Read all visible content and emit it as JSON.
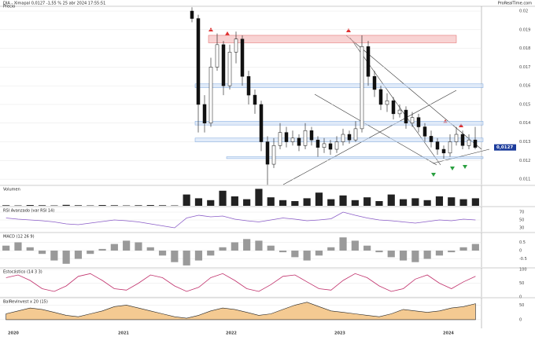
{
  "header": {
    "title": "DIA - Ximapal 0,0127 -1,55 % 25 abr 2024 17:55:51",
    "brand": "ProRealTime.com",
    "last_price_label": "0,0127"
  },
  "x_axis": {
    "labels": [
      "2020",
      "2021",
      "2022",
      "2023",
      "2024"
    ]
  },
  "chart_data": [
    {
      "type": "candlestick",
      "title": "Precio",
      "color_up": "#ffffff",
      "color_down": "#111111",
      "open": [
        0.02,
        0.0196,
        0.015,
        0.014,
        0.017,
        0.0182,
        0.016,
        0.0178,
        0.0185,
        0.0165,
        0.0155,
        0.015,
        0.013,
        0.0118,
        0.0128,
        0.0135,
        0.013,
        0.0132,
        0.0128,
        0.0136,
        0.0131,
        0.0127,
        0.0129,
        0.0126,
        0.013,
        0.0134,
        0.0131,
        0.0137,
        0.0181,
        0.0165,
        0.0158,
        0.015,
        0.0152,
        0.0145,
        0.0147,
        0.014,
        0.0143,
        0.0138,
        0.0133,
        0.013,
        0.0126,
        0.0124,
        0.013,
        0.0134,
        0.0128,
        0.0131
      ],
      "high": [
        0.0202,
        0.0198,
        0.0155,
        0.0175,
        0.0188,
        0.0184,
        0.0182,
        0.0189,
        0.0187,
        0.0168,
        0.0158,
        0.0152,
        0.0133,
        0.0132,
        0.014,
        0.0138,
        0.0136,
        0.0134,
        0.014,
        0.0138,
        0.0133,
        0.0132,
        0.0131,
        0.0133,
        0.0137,
        0.0136,
        0.0141,
        0.0187,
        0.0184,
        0.0168,
        0.016,
        0.0156,
        0.0154,
        0.015,
        0.0149,
        0.0146,
        0.0145,
        0.014,
        0.0136,
        0.0132,
        0.0128,
        0.0134,
        0.0138,
        0.0136,
        0.0134,
        0.0138
      ],
      "low": [
        0.0194,
        0.0135,
        0.0135,
        0.0138,
        0.0168,
        0.0155,
        0.0158,
        0.0172,
        0.016,
        0.015,
        0.0145,
        0.0125,
        0.0107,
        0.0116,
        0.0126,
        0.0127,
        0.0128,
        0.0125,
        0.0126,
        0.0128,
        0.0122,
        0.0124,
        0.0123,
        0.0124,
        0.0128,
        0.0129,
        0.013,
        0.0135,
        0.016,
        0.0154,
        0.0147,
        0.0146,
        0.0142,
        0.0143,
        0.0137,
        0.0138,
        0.0135,
        0.013,
        0.0127,
        0.0123,
        0.0121,
        0.0122,
        0.0128,
        0.0126,
        0.0126,
        0.0126
      ],
      "close": [
        0.0196,
        0.015,
        0.014,
        0.017,
        0.0182,
        0.016,
        0.0178,
        0.0185,
        0.0165,
        0.0155,
        0.015,
        0.013,
        0.0118,
        0.0128,
        0.0135,
        0.013,
        0.0132,
        0.0128,
        0.0136,
        0.0131,
        0.0127,
        0.0129,
        0.0126,
        0.013,
        0.0134,
        0.0131,
        0.0137,
        0.0181,
        0.0165,
        0.0158,
        0.015,
        0.0152,
        0.0145,
        0.0147,
        0.014,
        0.0143,
        0.0138,
        0.0133,
        0.013,
        0.0126,
        0.0124,
        0.013,
        0.0134,
        0.0128,
        0.0131,
        0.0127
      ],
      "zones": [
        {
          "low": 0.0183,
          "high": 0.0187,
          "color": "#f4b6b6"
        },
        {
          "low": 0.0159,
          "high": 0.0161,
          "color": "#cfe0f7"
        },
        {
          "low": 0.0139,
          "high": 0.0141,
          "color": "#cfe0f7"
        },
        {
          "low": 0.013,
          "high": 0.0132,
          "color": "#cfe0f7"
        },
        {
          "low": 0.0121,
          "high": 0.0122,
          "color": "#cfe0f7"
        }
      ],
      "ylim": [
        0.01071,
        0.02017
      ],
      "yticks": [
        0.011,
        0.012,
        0.013,
        0.014,
        0.015,
        0.016,
        0.017,
        0.018,
        0.019,
        0.02
      ]
    },
    {
      "type": "bar",
      "title": "Volumen",
      "color": "#222222",
      "values": [
        3,
        2,
        4,
        3,
        2,
        5,
        3,
        2,
        4,
        3,
        2,
        3,
        4,
        3,
        2,
        60,
        40,
        30,
        80,
        50,
        35,
        90,
        45,
        30,
        25,
        40,
        70,
        35,
        55,
        30,
        45,
        25,
        60,
        35,
        40,
        30,
        50,
        45,
        35,
        40
      ],
      "ylim": [
        0,
        100
      ]
    },
    {
      "type": "line",
      "title": "RSI Avanzado (var RSI 14)",
      "color": "#8a5cc7",
      "values": [
        55,
        52,
        50,
        48,
        45,
        40,
        38,
        42,
        46,
        50,
        48,
        45,
        40,
        35,
        30,
        55,
        62,
        58,
        60,
        52,
        48,
        45,
        50,
        55,
        52,
        48,
        50,
        53,
        70,
        62,
        55,
        50,
        48,
        45,
        42,
        46,
        50,
        48,
        52,
        50
      ],
      "ylim": [
        20,
        80
      ],
      "yticks": [
        30,
        50,
        70
      ]
    },
    {
      "type": "bar",
      "title": "MACD (12 26 9)",
      "color": "#9a9a9a",
      "values": [
        0.3,
        0.5,
        0.2,
        -0.2,
        -0.6,
        -0.8,
        -0.5,
        -0.2,
        0.1,
        0.4,
        0.6,
        0.5,
        0.2,
        -0.3,
        -0.7,
        -0.9,
        -0.6,
        -0.3,
        0.2,
        0.5,
        0.7,
        0.6,
        0.3,
        -0.1,
        -0.4,
        -0.6,
        -0.3,
        0.2,
        0.8,
        0.6,
        0.3,
        -0.1,
        -0.4,
        -0.6,
        -0.7,
        -0.5,
        -0.3,
        -0.1,
        0.2,
        0.4
      ],
      "ylim": [
        -1,
        1
      ],
      "yticks": [
        -0.5,
        0,
        0.5
      ]
    },
    {
      "type": "line",
      "title": "Estocástico (14 3 3)",
      "color": "#c0306b",
      "values": [
        70,
        80,
        60,
        30,
        20,
        40,
        75,
        85,
        60,
        30,
        25,
        50,
        80,
        70,
        40,
        20,
        35,
        70,
        85,
        60,
        30,
        20,
        45,
        75,
        80,
        55,
        30,
        25,
        60,
        85,
        70,
        40,
        20,
        30,
        65,
        80,
        50,
        30,
        55,
        75
      ],
      "ylim": [
        0,
        100
      ],
      "yticks": [
        0,
        50,
        100
      ]
    },
    {
      "type": "area",
      "title": "BalRevInvest x 20 (15)",
      "color": "#f0b464",
      "values": [
        20,
        30,
        40,
        35,
        25,
        15,
        10,
        20,
        30,
        45,
        50,
        40,
        30,
        20,
        10,
        5,
        15,
        30,
        40,
        35,
        25,
        15,
        20,
        35,
        50,
        60,
        45,
        30,
        25,
        20,
        15,
        10,
        20,
        35,
        30,
        25,
        30,
        40,
        45,
        55
      ],
      "ylim": [
        -30,
        70
      ],
      "yticks": [
        0,
        50
      ]
    }
  ]
}
